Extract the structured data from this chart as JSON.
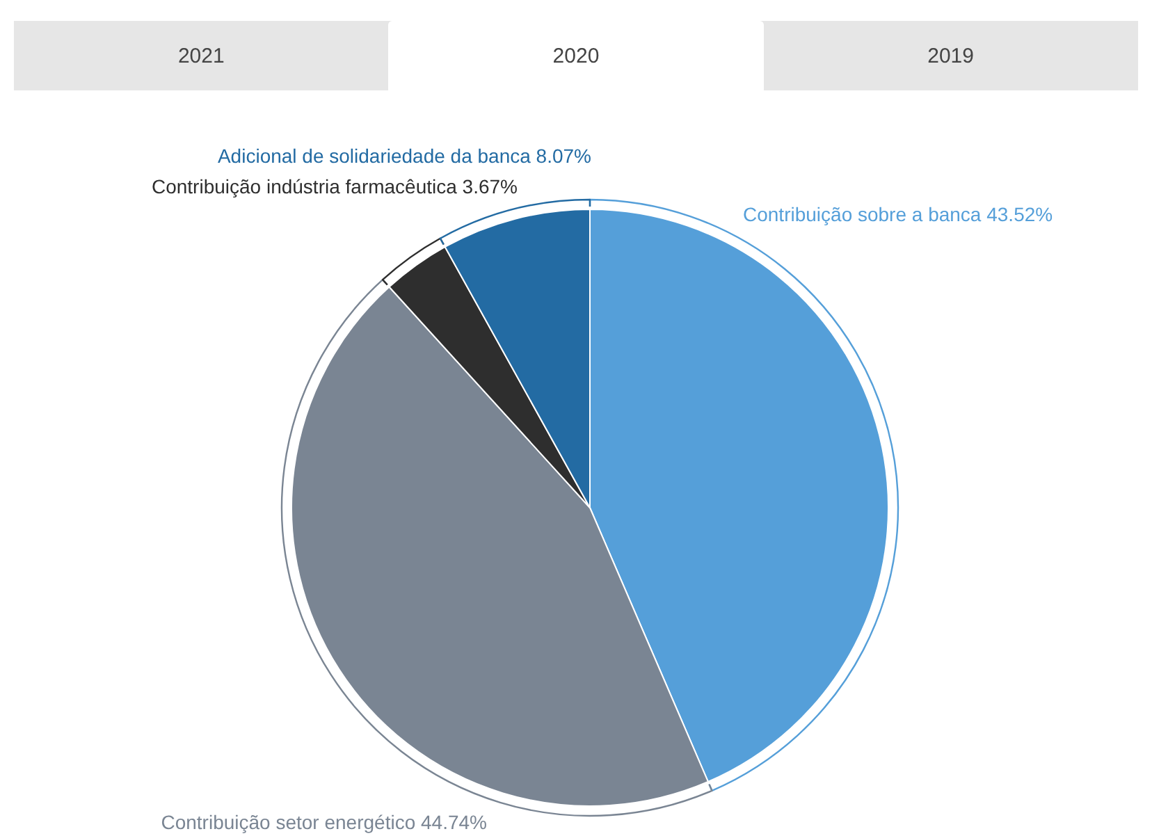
{
  "chart_data": {
    "type": "pie",
    "annotations": [
      "2021",
      "2020",
      "2019"
    ],
    "categories": [
      "Contribuição sobre a banca",
      "Contribuição setor energético",
      "Contribuição indústria farmacêutica",
      "Adicional de solidariedade da banca"
    ],
    "values": [
      43.52,
      44.74,
      3.67,
      8.07
    ],
    "value_labels": [
      "43.52%",
      "44.74%",
      "3.67%",
      "8.07%"
    ],
    "colors": [
      "#559fd9",
      "#7a8593",
      "#2e2e2e",
      "#236ba3"
    ],
    "legend": false
  }
}
